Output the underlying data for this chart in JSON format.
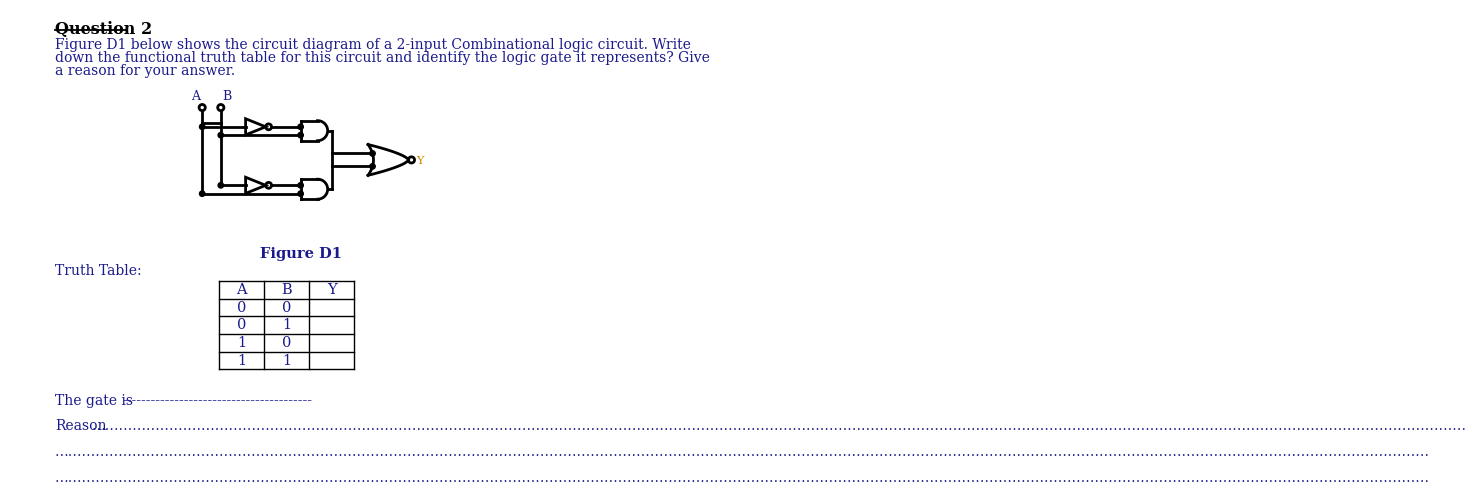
{
  "title": "Question 2",
  "question_text": "Figure D1 below shows the circuit diagram of a 2-input Combinational logic circuit. Write\ndown the functional truth table for this circuit and identify the logic gate it represents? Give\na reason for your answer.",
  "figure_label": "Figure D1",
  "truth_table_label": "Truth Table:",
  "truth_table_headers": [
    "A",
    "B",
    "Y"
  ],
  "truth_table_rows": [
    [
      "0",
      "0",
      ""
    ],
    [
      "0",
      "1",
      ""
    ],
    [
      "1",
      "0",
      ""
    ],
    [
      "1",
      "1",
      ""
    ]
  ],
  "gate_line_prefix": "The gate is ",
  "gate_line_dashes": "----------------------------------------",
  "reason_prefix": "Reason",
  "dots_long": "…………………………………………………………………………………………………………………………………………………………………………………………………………………………………………………………………………",
  "text_color": "#1a1a8c",
  "title_color": "#000000",
  "Y_label_color": "#cc8800",
  "bg_color": "#ffffff",
  "circuit_color": "#000000"
}
